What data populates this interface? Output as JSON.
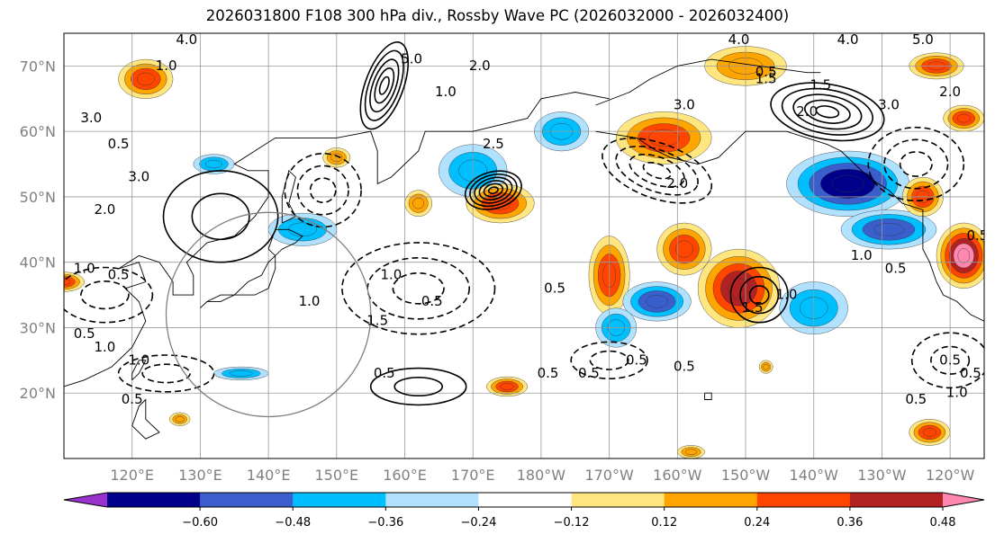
{
  "title": "2026031800 F108 300 hPa div., Rossby Wave PC (2026032000 - 2026032400)",
  "chart_data": {
    "type": "heatmap",
    "title": "2026031800 F108 300 hPa div., Rossby Wave PC (2026032000 - 2026032400)",
    "xlabel": "",
    "ylabel": "",
    "lon_range_east": [
      110,
      245
    ],
    "lat_range": [
      10,
      75
    ],
    "lat_ticks": [
      {
        "lat": 20,
        "label": "20°N"
      },
      {
        "lat": 30,
        "label": "30°N"
      },
      {
        "lat": 40,
        "label": "40°N"
      },
      {
        "lat": 50,
        "label": "50°N"
      },
      {
        "lat": 60,
        "label": "60°N"
      },
      {
        "lat": 70,
        "label": "70°N"
      }
    ],
    "lon_ticks": [
      {
        "lon": 120,
        "label": "120°E"
      },
      {
        "lon": 130,
        "label": "130°E"
      },
      {
        "lon": 140,
        "label": "140°E"
      },
      {
        "lon": 150,
        "label": "150°E"
      },
      {
        "lon": 160,
        "label": "160°E"
      },
      {
        "lon": 170,
        "label": "170°E"
      },
      {
        "lon": 180,
        "label": "180°W"
      },
      {
        "lon": 190,
        "label": "170°W"
      },
      {
        "lon": 200,
        "label": "160°W"
      },
      {
        "lon": 210,
        "label": "150°W"
      },
      {
        "lon": 220,
        "label": "140°W"
      },
      {
        "lon": 230,
        "label": "130°W"
      },
      {
        "lon": 240,
        "label": "120°W"
      }
    ],
    "grid": true,
    "colorbar": {
      "placement": "bottom",
      "levels": [
        -0.6,
        -0.48,
        -0.36,
        -0.24,
        -0.12,
        0.12,
        0.24,
        0.36,
        0.48,
        0.6
      ],
      "tick_labels": [
        "−0.60",
        "−0.48",
        "−0.36",
        "−0.24",
        "−0.12",
        "0.12",
        "0.24",
        "0.36",
        "0.48",
        "0.60"
      ],
      "under_color": "#9932cc",
      "over_color": "#ff88b0",
      "colors": [
        "#9932cc",
        "#00008b",
        "#3a5fcd",
        "#00bfff",
        "#b0e2ff",
        "#ffffff",
        "#ffe680",
        "#ffa500",
        "#ff4500",
        "#b22222",
        "#ff88b0"
      ]
    },
    "shaded_regions": [
      {
        "lon": 122,
        "lat": 68,
        "rx": 4,
        "ry": 3,
        "value": 0.42
      },
      {
        "lon": 132,
        "lat": 55,
        "rx": 3,
        "ry": 1.5,
        "value": -0.3
      },
      {
        "lon": 145,
        "lat": 45,
        "rx": 5,
        "ry": 2.5,
        "value": -0.3
      },
      {
        "lon": 150,
        "lat": 56,
        "rx": 2,
        "ry": 1.5,
        "value": 0.3
      },
      {
        "lon": 162,
        "lat": 49,
        "rx": 2,
        "ry": 2,
        "value": 0.3
      },
      {
        "lon": 170,
        "lat": 54,
        "rx": 5,
        "ry": 4,
        "value": -0.3
      },
      {
        "lon": 174,
        "lat": 49,
        "rx": 5,
        "ry": 3,
        "value": 0.4
      },
      {
        "lon": 183,
        "lat": 60,
        "rx": 4,
        "ry": 3,
        "value": -0.3
      },
      {
        "lon": 198,
        "lat": 59,
        "rx": 7,
        "ry": 4,
        "value": 0.4
      },
      {
        "lon": 210,
        "lat": 70,
        "rx": 6,
        "ry": 3,
        "value": 0.3
      },
      {
        "lon": 190,
        "lat": 38,
        "rx": 3,
        "ry": 6,
        "value": 0.45
      },
      {
        "lon": 191,
        "lat": 30,
        "rx": 3,
        "ry": 3,
        "value": -0.3
      },
      {
        "lon": 197,
        "lat": 34,
        "rx": 5,
        "ry": 3,
        "value": -0.42
      },
      {
        "lon": 201,
        "lat": 42,
        "rx": 4,
        "ry": 4,
        "value": 0.4
      },
      {
        "lon": 209,
        "lat": 36,
        "rx": 6,
        "ry": 6,
        "value": 0.5
      },
      {
        "lon": 220,
        "lat": 33,
        "rx": 5,
        "ry": 4,
        "value": -0.35
      },
      {
        "lon": 225,
        "lat": 52,
        "rx": 9,
        "ry": 5,
        "value": -0.55
      },
      {
        "lon": 231,
        "lat": 45,
        "rx": 7,
        "ry": 3,
        "value": -0.45
      },
      {
        "lon": 236,
        "lat": 50,
        "rx": 3,
        "ry": 3,
        "value": 0.4
      },
      {
        "lon": 238,
        "lat": 70,
        "rx": 4,
        "ry": 2,
        "value": 0.4
      },
      {
        "lon": 242,
        "lat": 41,
        "rx": 4,
        "ry": 5,
        "value": 0.62
      },
      {
        "lon": 242,
        "lat": 62,
        "rx": 3,
        "ry": 2,
        "value": 0.4
      },
      {
        "lon": 175,
        "lat": 21,
        "rx": 3,
        "ry": 1.5,
        "value": 0.4
      },
      {
        "lon": 136,
        "lat": 23,
        "rx": 4,
        "ry": 1,
        "value": -0.3
      },
      {
        "lon": 127,
        "lat": 16,
        "rx": 1.5,
        "ry": 1,
        "value": 0.3
      },
      {
        "lon": 213,
        "lat": 24,
        "rx": 1,
        "ry": 1,
        "value": 0.3
      },
      {
        "lon": 237,
        "lat": 14,
        "rx": 3,
        "ry": 2,
        "value": 0.4
      },
      {
        "lon": 110,
        "lat": 37,
        "rx": 3,
        "ry": 1.5,
        "value": 0.4
      },
      {
        "lon": 202,
        "lat": 11,
        "rx": 2,
        "ry": 1,
        "value": 0.3
      }
    ],
    "contour_labels": [
      {
        "lon": 128,
        "lat": 74,
        "text": "4.0"
      },
      {
        "lon": 125,
        "lat": 70,
        "text": "1.0"
      },
      {
        "lon": 114,
        "lat": 62,
        "text": "3.0"
      },
      {
        "lon": 118,
        "lat": 58,
        "text": "0.5"
      },
      {
        "lon": 121,
        "lat": 53,
        "text": "3.0"
      },
      {
        "lon": 116,
        "lat": 48,
        "text": "2.0"
      },
      {
        "lon": 113,
        "lat": 39,
        "text": "1.0"
      },
      {
        "lon": 118,
        "lat": 38,
        "text": "0.5"
      },
      {
        "lon": 113,
        "lat": 29,
        "text": "0.5"
      },
      {
        "lon": 116,
        "lat": 27,
        "text": "1.0"
      },
      {
        "lon": 121,
        "lat": 25,
        "text": "1.0"
      },
      {
        "lon": 120,
        "lat": 19,
        "text": "0.5"
      },
      {
        "lon": 146,
        "lat": 34,
        "text": "1.0"
      },
      {
        "lon": 158,
        "lat": 38,
        "text": "1.0"
      },
      {
        "lon": 164,
        "lat": 34,
        "text": "0.5"
      },
      {
        "lon": 156,
        "lat": 31,
        "text": "1.5"
      },
      {
        "lon": 157,
        "lat": 23,
        "text": "0.5"
      },
      {
        "lon": 161,
        "lat": 71,
        "text": "5.0"
      },
      {
        "lon": 166,
        "lat": 66,
        "text": "1.0"
      },
      {
        "lon": 171,
        "lat": 70,
        "text": "2.0"
      },
      {
        "lon": 173,
        "lat": 58,
        "text": "2.5"
      },
      {
        "lon": 182,
        "lat": 36,
        "text": "0.5"
      },
      {
        "lon": 181,
        "lat": 23,
        "text": "0.5"
      },
      {
        "lon": 187,
        "lat": 23,
        "text": "0.5"
      },
      {
        "lon": 194,
        "lat": 25,
        "text": "0.5"
      },
      {
        "lon": 201,
        "lat": 24,
        "text": "0.5"
      },
      {
        "lon": 200,
        "lat": 52,
        "text": "2.0"
      },
      {
        "lon": 201,
        "lat": 64,
        "text": "3.0"
      },
      {
        "lon": 209,
        "lat": 74,
        "text": "4.0"
      },
      {
        "lon": 213,
        "lat": 69,
        "text": "0.5"
      },
      {
        "lon": 213,
        "lat": 68,
        "text": "1.5"
      },
      {
        "lon": 221,
        "lat": 67,
        "text": "1.5"
      },
      {
        "lon": 219,
        "lat": 63,
        "text": "2.0"
      },
      {
        "lon": 225,
        "lat": 74,
        "text": "4.0"
      },
      {
        "lon": 236,
        "lat": 74,
        "text": "5.0"
      },
      {
        "lon": 231,
        "lat": 64,
        "text": "3.0"
      },
      {
        "lon": 240,
        "lat": 66,
        "text": "2.0"
      },
      {
        "lon": 211,
        "lat": 33,
        "text": "1.5"
      },
      {
        "lon": 216,
        "lat": 35,
        "text": "1.0"
      },
      {
        "lon": 227,
        "lat": 41,
        "text": "1.0"
      },
      {
        "lon": 232,
        "lat": 39,
        "text": "0.5"
      },
      {
        "lon": 235,
        "lat": 19,
        "text": "0.5"
      },
      {
        "lon": 241,
        "lat": 20,
        "text": "1.0"
      },
      {
        "lon": 243,
        "lat": 23,
        "text": "0.5"
      },
      {
        "lon": 240,
        "lat": 25,
        "text": "0.5"
      },
      {
        "lon": 244,
        "lat": 44,
        "text": "0.5"
      }
    ]
  }
}
